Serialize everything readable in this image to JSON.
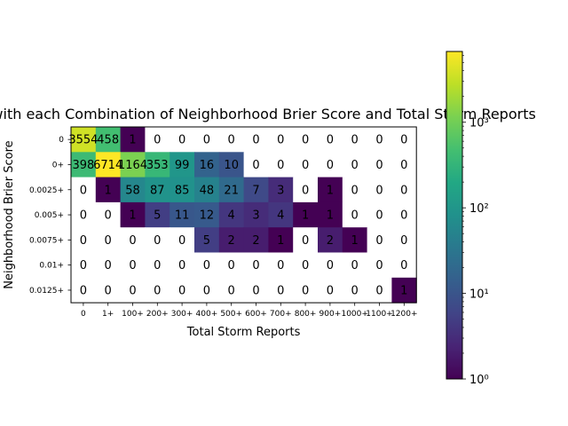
{
  "chart_data": {
    "type": "heatmap",
    "title": "Days with each Combination of Neighborhood Brier Score and Total Storm Reports",
    "xlabel": "Total Storm Reports",
    "ylabel": "Neighborhood Brier Score",
    "x_categories": [
      "0",
      "1+",
      "100+",
      "200+",
      "300+",
      "400+",
      "500+",
      "600+",
      "700+",
      "800+",
      "900+",
      "1000+",
      "1100+",
      "1200+"
    ],
    "y_categories": [
      "0",
      "0+",
      "0.0025+",
      "0.005+",
      "0.0075+",
      "0.01+",
      "0.0125+"
    ],
    "values": [
      [
        3554,
        458,
        1,
        0,
        0,
        0,
        0,
        0,
        0,
        0,
        0,
        0,
        0,
        0
      ],
      [
        398,
        6714,
        1164,
        353,
        99,
        16,
        10,
        0,
        0,
        0,
        0,
        0,
        0,
        0
      ],
      [
        0,
        1,
        58,
        87,
        85,
        48,
        21,
        7,
        3,
        0,
        1,
        0,
        0,
        0
      ],
      [
        0,
        0,
        1,
        5,
        11,
        12,
        4,
        3,
        4,
        1,
        1,
        0,
        0,
        0
      ],
      [
        0,
        0,
        0,
        0,
        0,
        5,
        2,
        2,
        1,
        0,
        2,
        1,
        0,
        0
      ],
      [
        0,
        0,
        0,
        0,
        0,
        0,
        0,
        0,
        0,
        0,
        0,
        0,
        0,
        0
      ],
      [
        0,
        0,
        0,
        0,
        0,
        0,
        0,
        0,
        0,
        0,
        0,
        0,
        0,
        1
      ]
    ],
    "colorbar": {
      "scale": "log",
      "range": [
        1,
        6714
      ],
      "colormap": "viridis",
      "ticks": [
        1,
        10,
        100,
        1000
      ],
      "tick_labels": [
        "10⁰",
        "10¹",
        "10²",
        "10³"
      ]
    },
    "zero_cells_color": "#ffffff"
  }
}
